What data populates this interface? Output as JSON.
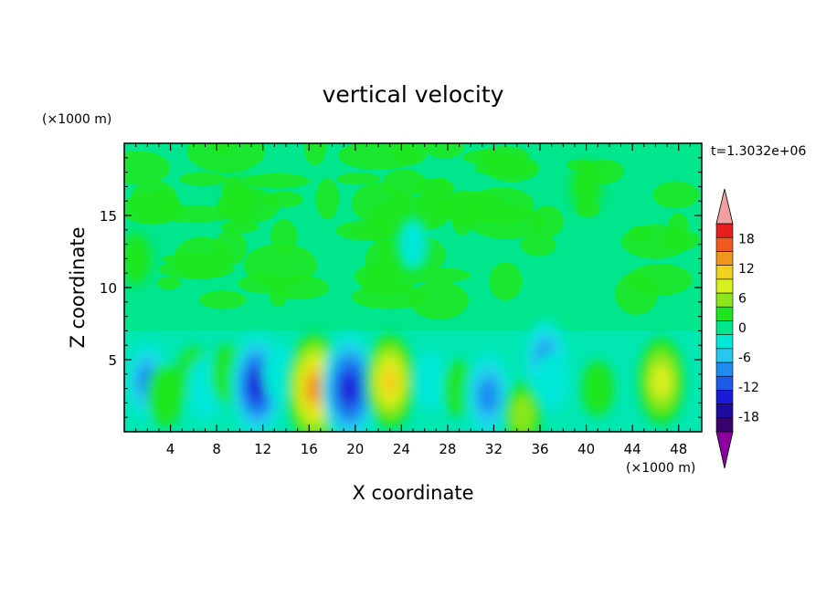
{
  "chart_data": {
    "type": "heatmap",
    "title": "vertical velocity",
    "xlabel": "X coordinate",
    "ylabel": "Z coordinate",
    "x_unit": "(×1000 m)",
    "y_unit": "(×1000 m)",
    "time_label": "t=1.3032e+06",
    "xlim": [
      0,
      50
    ],
    "ylim": [
      0,
      20
    ],
    "x_ticks": [
      4,
      8,
      12,
      16,
      20,
      24,
      28,
      32,
      36,
      40,
      44,
      48
    ],
    "y_ticks": [
      5,
      10,
      15
    ],
    "colorbar": {
      "ticks": [
        18,
        12,
        6,
        0,
        -6,
        -12,
        -18
      ],
      "levels": [
        -21,
        -18,
        -15,
        -12,
        -9,
        -6,
        -3,
        0,
        3,
        6,
        9,
        12,
        15,
        18,
        21
      ],
      "colors": [
        "#3a0070",
        "#1e0aa0",
        "#1a1ad8",
        "#1e5ae8",
        "#1e8cf0",
        "#26c8f0",
        "#00e8d8",
        "#00e68c",
        "#1ee61e",
        "#8ce61e",
        "#d8f01e",
        "#f0d21e",
        "#f0961e",
        "#f05a1e",
        "#e61e1e"
      ],
      "over_color": "#f0a0a0",
      "under_color": "#8c00a0"
    },
    "cells": [
      {
        "x": 2.0,
        "z": 3.5,
        "w": -8
      },
      {
        "x": 3.5,
        "z": 2.5,
        "w": 4
      },
      {
        "x": 6.0,
        "z": 4.0,
        "w": 2
      },
      {
        "x": 7.0,
        "z": 3.0,
        "w": -4
      },
      {
        "x": 9.0,
        "z": 4.0,
        "w": 3
      },
      {
        "x": 11.5,
        "z": 3.2,
        "w": -14
      },
      {
        "x": 13.5,
        "z": 4.0,
        "w": -3
      },
      {
        "x": 16.5,
        "z": 3.0,
        "w": 16
      },
      {
        "x": 19.5,
        "z": 3.0,
        "w": -16
      },
      {
        "x": 23.0,
        "z": 3.5,
        "w": 12
      },
      {
        "x": 26.5,
        "z": 3.5,
        "w": -3
      },
      {
        "x": 29.0,
        "z": 3.0,
        "w": 2
      },
      {
        "x": 31.5,
        "z": 2.5,
        "w": -10
      },
      {
        "x": 34.5,
        "z": 1.2,
        "w": 5
      },
      {
        "x": 36.5,
        "z": 5.0,
        "w": -8
      },
      {
        "x": 37.0,
        "z": 3.5,
        "w": -3
      },
      {
        "x": 41.0,
        "z": 3.0,
        "w": 2
      },
      {
        "x": 46.5,
        "z": 3.5,
        "w": 10
      },
      {
        "x": 1.0,
        "z": 12.0,
        "w": 1
      },
      {
        "x": 10.0,
        "z": 16.0,
        "w": 1
      },
      {
        "x": 25.0,
        "z": 13.0,
        "w": -1
      },
      {
        "x": 40.0,
        "z": 17.0,
        "w": 1
      }
    ]
  }
}
